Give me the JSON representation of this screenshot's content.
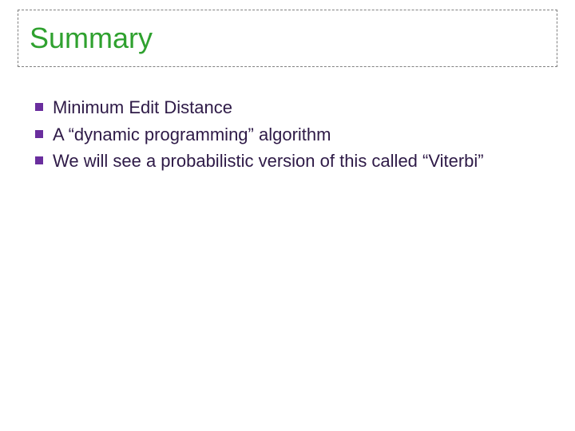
{
  "title": {
    "text": "Summary",
    "color": "#2fa12f",
    "fontsize": 36
  },
  "bullets": [
    {
      "text": "Minimum Edit Distance"
    },
    {
      "text": "A “dynamic programming” algorithm"
    },
    {
      "text": "We will see a probabilistic version of this called “Viterbi”"
    }
  ],
  "style": {
    "bullet_marker_color": "#6a2e9e",
    "bullet_text_color": "#2e1a47",
    "bullet_fontsize": 22,
    "title_border_color": "#808080",
    "background_color": "#ffffff"
  }
}
